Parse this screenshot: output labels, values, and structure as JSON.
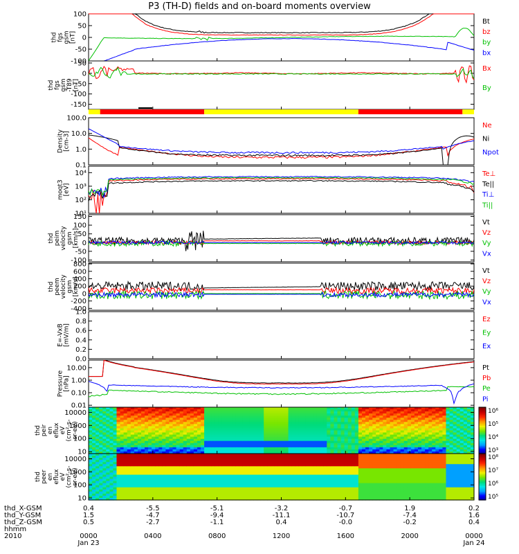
{
  "title": "P3 (TH-D) fields and on-board moments overview",
  "chart_data": {
    "type": "line",
    "x_ticks": [
      "0000",
      "0400",
      "0800",
      "1200",
      "1600",
      "2000",
      "0000"
    ],
    "date_start": "Jan 23",
    "date_end": "Jan 24",
    "footer_labels": [
      "thd_X-GSM",
      "thd_Y-GSM",
      "thd_Z-GSM",
      "hhmm",
      "2010"
    ],
    "ephemeris": {
      "x": [
        "0.4",
        "-5.5",
        "-5.1",
        "-3.2",
        "-0.7",
        "1.9",
        "0.2"
      ],
      "y": [
        "1.5",
        "-4.7",
        "-9.4",
        "-11.1",
        "-10.7",
        "-7.4",
        "1.6"
      ],
      "z": [
        "0.5",
        "-2.7",
        "-1.1",
        "0.4",
        "-0.0",
        "-0.2",
        "0.4"
      ]
    },
    "panels": [
      {
        "id": "fgs",
        "ylabel": [
          "thd",
          "fgs",
          "gsm",
          "[nT]"
        ],
        "ticks": [
          "100",
          "50",
          "0",
          "-50",
          "-100"
        ],
        "tick_vals": [
          100,
          50,
          0,
          -50,
          -100
        ],
        "ylim": [
          -100,
          100
        ],
        "legend": [
          {
            "name": "Bt",
            "color": "#000000"
          },
          {
            "name": "bz",
            "color": "#ff0000"
          },
          {
            "name": "by",
            "color": "#00c000"
          },
          {
            "name": "bx",
            "color": "#0000ff"
          }
        ]
      },
      {
        "id": "t89",
        "ylabel": [
          "thd",
          "fgs",
          "gsm",
          "-T89",
          "[nT]"
        ],
        "ticks": [
          "50",
          "0",
          "-50",
          "-100",
          "-150"
        ],
        "tick_vals": [
          50,
          0,
          -50,
          -100,
          -150
        ],
        "ylim": [
          -175,
          60
        ],
        "legend": [
          {
            "name": "Bx",
            "color": "#ff0000"
          },
          {
            "name": "By",
            "color": "#00c000"
          }
        ]
      },
      {
        "id": "density",
        "ylabel": [
          "Density",
          "[cm-3]"
        ],
        "ticks": [
          "100.0",
          "10.0",
          "1.0",
          "0.1"
        ],
        "tick_vals": [
          100,
          10,
          1,
          0.1
        ],
        "log": true,
        "ylim": [
          0.1,
          100
        ],
        "legend": [
          {
            "name": "Ne",
            "color": "#ff0000"
          },
          {
            "name": "Ni",
            "color": "#000000"
          },
          {
            "name": "Npot",
            "color": "#0000ff"
          }
        ]
      },
      {
        "id": "temp",
        "ylabel": [
          "moqt3",
          "[eV]"
        ],
        "ticks": [
          "10⁴",
          "10³",
          "10²",
          "10¹"
        ],
        "tick_vals": [
          10000,
          1000,
          100,
          10
        ],
        "log": true,
        "ylim": [
          10,
          30000
        ],
        "legend": [
          {
            "name": "Te⊥",
            "color": "#ff0000"
          },
          {
            "name": "Te||",
            "color": "#000000"
          },
          {
            "name": "Ti⊥",
            "color": "#0000ff"
          },
          {
            "name": "Ti||",
            "color": "#00c000"
          }
        ]
      },
      {
        "id": "peim",
        "ylabel": [
          "thd",
          "peim",
          "velocity",
          "gsm",
          "[km/s]"
        ],
        "ticks": [
          "150",
          "100",
          "50",
          "0",
          "-50",
          "-100"
        ],
        "tick_vals": [
          150,
          100,
          50,
          0,
          -50,
          -100
        ],
        "ylim": [
          -110,
          160
        ],
        "legend": [
          {
            "name": "Vt",
            "color": "#000000"
          },
          {
            "name": "Vz",
            "color": "#ff0000"
          },
          {
            "name": "Vy",
            "color": "#00c000"
          },
          {
            "name": "Vx",
            "color": "#0000ff"
          }
        ]
      },
      {
        "id": "peem",
        "ylabel": [
          "thd",
          "peem",
          "velocity",
          "gsm",
          "[km/s]"
        ],
        "ticks": [
          "800",
          "600",
          "400",
          "200",
          "0",
          "-200",
          "-400"
        ],
        "tick_vals": [
          800,
          600,
          400,
          200,
          0,
          -200,
          -400
        ],
        "ylim": [
          -450,
          820
        ],
        "legend": [
          {
            "name": "Vt",
            "color": "#000000"
          },
          {
            "name": "Vz",
            "color": "#ff0000"
          },
          {
            "name": "Vy",
            "color": "#00c000"
          },
          {
            "name": "Vx",
            "color": "#0000ff"
          }
        ]
      },
      {
        "id": "efield",
        "ylabel": [
          "E=-VxB",
          "[mV/m]"
        ],
        "ticks": [
          "1.0",
          "0.8",
          "0.6",
          "0.4",
          "0.2",
          "0.0"
        ],
        "tick_vals": [
          1,
          0.8,
          0.6,
          0.4,
          0.2,
          0
        ],
        "ylim": [
          0,
          1
        ],
        "legend": [
          {
            "name": "Ez",
            "color": "#ff0000"
          },
          {
            "name": "Ey",
            "color": "#00c000"
          },
          {
            "name": "Ex",
            "color": "#0000ff"
          }
        ]
      },
      {
        "id": "pressure",
        "ylabel": [
          "Pressure",
          "[nPa]"
        ],
        "ticks": [
          "10.00",
          "1.00",
          "0.10",
          "0.01"
        ],
        "tick_vals": [
          10,
          1,
          0.1,
          0.01
        ],
        "log": true,
        "ylim": [
          0.007,
          40
        ],
        "legend": [
          {
            "name": "Pt",
            "color": "#000000"
          },
          {
            "name": "Pb",
            "color": "#ff0000"
          },
          {
            "name": "Pe",
            "color": "#00c000"
          },
          {
            "name": "Pi",
            "color": "#0000ff"
          }
        ]
      },
      {
        "id": "peir_spec",
        "ylabel": [
          "thd",
          "peir",
          "en",
          "eflux",
          "eV",
          "(cm²-s-",
          "sr-eV)"
        ],
        "ticks": [
          "10000",
          "1000",
          "100",
          "10"
        ],
        "tick_vals": [
          10000,
          1000,
          100,
          10
        ],
        "log": true,
        "ylim": [
          7,
          25000
        ],
        "colorbar": [
          "10⁶",
          "10⁵",
          "10⁴",
          "10³"
        ]
      },
      {
        "id": "peer_spec",
        "ylabel": [
          "thd",
          "peer",
          "en",
          "eflux",
          "eV",
          "(cm²-s-",
          "sr-eV)"
        ],
        "ticks": [
          "10000",
          "1000",
          "100",
          "10"
        ],
        "tick_vals": [
          10000,
          1000,
          100,
          10
        ],
        "log": true,
        "ylim": [
          7,
          25000
        ],
        "colorbar": [
          "10⁸",
          "10⁷",
          "10⁶",
          "10⁵"
        ]
      }
    ],
    "mode_bar": [
      {
        "from": 0.0,
        "to": 0.03,
        "color": "#ffff00"
      },
      {
        "from": 0.03,
        "to": 0.3,
        "color": "#ff0000"
      },
      {
        "from": 0.3,
        "to": 0.7,
        "color": "#ffff00"
      },
      {
        "from": 0.7,
        "to": 0.97,
        "color": "#ff0000"
      },
      {
        "from": 0.97,
        "to": 1.0,
        "color": "#ffff00"
      }
    ]
  }
}
